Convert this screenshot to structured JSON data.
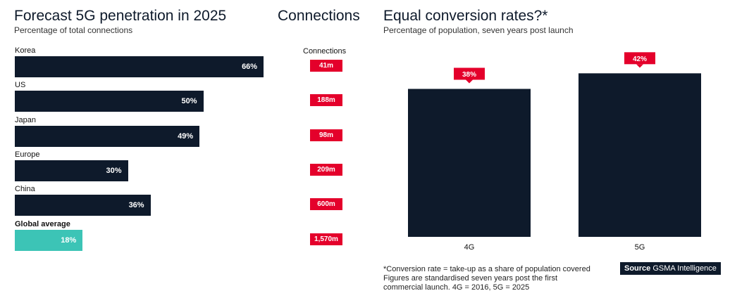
{
  "left_panel": {
    "title": "Forecast 5G penetration in 2025",
    "subtitle": "Percentage of total connections"
  },
  "connections_panel": {
    "title": "Connections",
    "column_header": "Connections"
  },
  "right_panel": {
    "title": "Equal conversion rates?*",
    "subtitle": "Percentage of population, seven years post launch"
  },
  "footnote": {
    "line1": "*Conversion rate = take-up as a share of population covered",
    "line2": "Figures are standardised seven years post the first",
    "line3": "commercial launch. 4G = 2016, 5G = 2025"
  },
  "source": {
    "label": "Source",
    "text": "GSMA Intelligence"
  },
  "colors": {
    "bar_dark": "#0e1a2b",
    "bar_highlight": "#3cc4b6",
    "badge_red": "#e4002b"
  },
  "chart_data": [
    {
      "type": "bar",
      "orientation": "horizontal",
      "title": "Forecast 5G penetration in 2025",
      "subtitle": "Percentage of total connections",
      "categories": [
        "Korea",
        "US",
        "Japan",
        "Europe",
        "China",
        "Global average"
      ],
      "values": [
        66,
        50,
        49,
        30,
        36,
        18
      ],
      "value_labels": [
        "66%",
        "50%",
        "49%",
        "30%",
        "36%",
        "18%"
      ],
      "highlight": "Global average",
      "xlim": [
        0,
        100
      ]
    },
    {
      "type": "table",
      "title": "Connections",
      "categories": [
        "Korea",
        "US",
        "Japan",
        "Europe",
        "China",
        "Global average"
      ],
      "values": [
        "41m",
        "188m",
        "98m",
        "209m",
        "600m",
        "1,570m"
      ]
    },
    {
      "type": "bar",
      "orientation": "vertical",
      "title": "Equal conversion rates?*",
      "subtitle": "Percentage of population, seven years post launch",
      "categories": [
        "4G",
        "5G"
      ],
      "values": [
        38,
        42
      ],
      "value_labels": [
        "38%",
        "42%"
      ],
      "ylim": [
        0,
        50
      ]
    }
  ]
}
